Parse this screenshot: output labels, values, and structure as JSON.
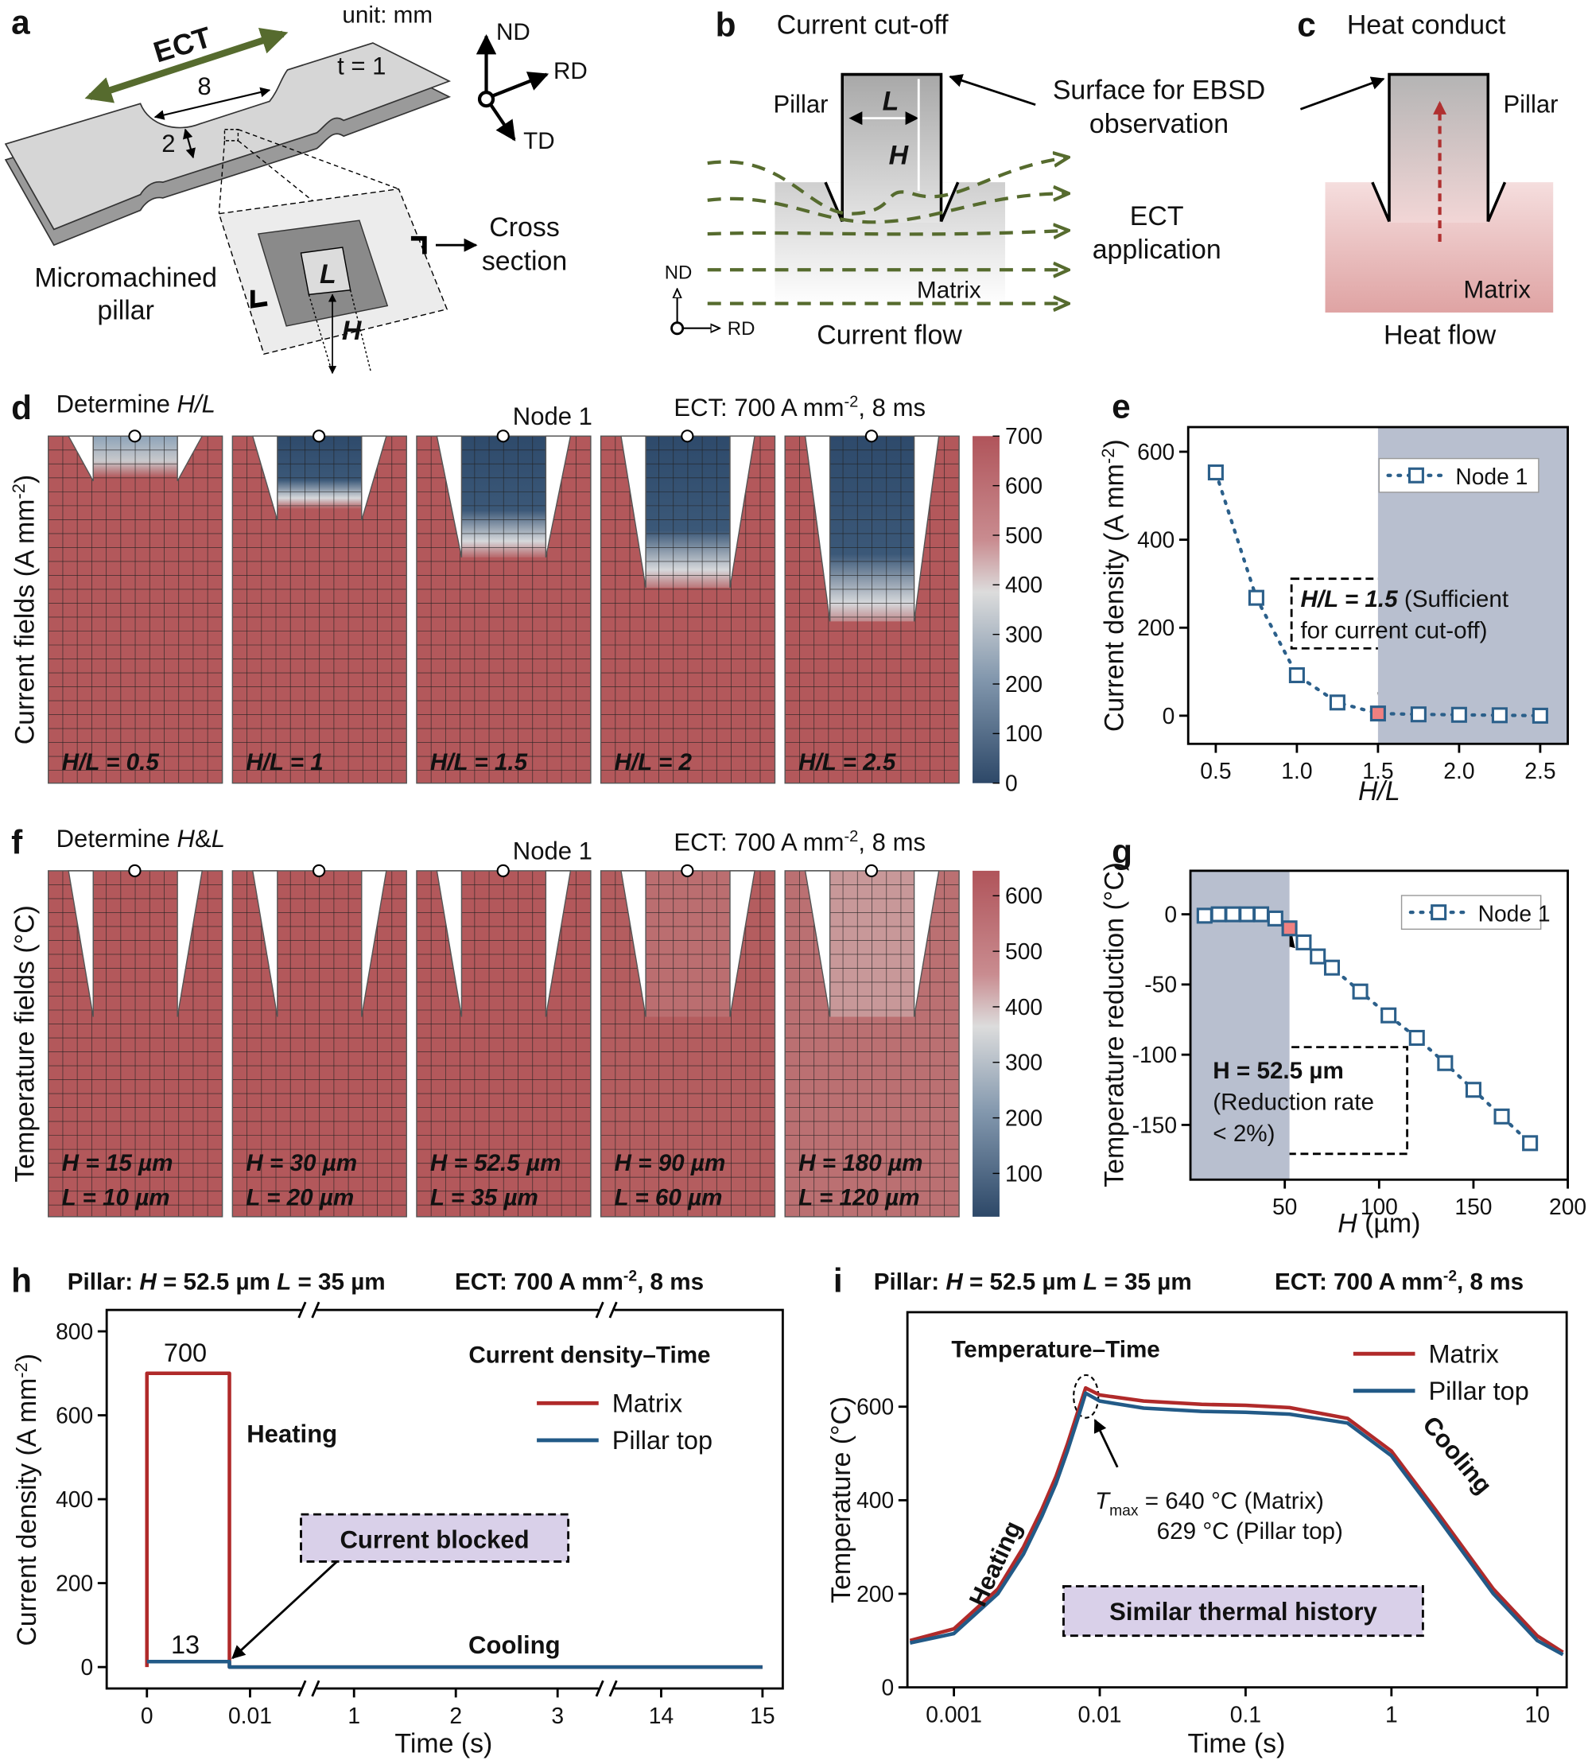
{
  "panels": {
    "a": {
      "label": "a",
      "unit": "unit: mm",
      "ect": "ECT",
      "gauge_length": "8",
      "gauge_width": "2",
      "thickness": "t = 1",
      "axes": [
        "ND",
        "RD",
        "TD"
      ],
      "pillar_L": "L",
      "pillar_H": "H",
      "pillar_name": [
        "Micromachined",
        "pillar"
      ],
      "cross_section": [
        "Cross",
        "section"
      ]
    },
    "b": {
      "label": "b",
      "title": "Current cut-off",
      "pillar": "Pillar",
      "L": "L",
      "H": "H",
      "surface": [
        "Surface for EBSD",
        "observation"
      ],
      "ect": [
        "ECT",
        "application"
      ],
      "matrix": "Matrix",
      "flow": "Current flow",
      "axes": [
        "ND",
        "RD"
      ]
    },
    "c": {
      "label": "c",
      "title": "Heat conduct",
      "pillar": "Pillar",
      "matrix": "Matrix",
      "flow": "Heat flow"
    },
    "d": {
      "label": "d",
      "title": [
        "Determine ",
        "H/L"
      ],
      "node": "Node 1",
      "ect": [
        "ECT: 700 A mm",
        "-2",
        ", 8 ms"
      ],
      "ylabel": [
        "Current fields (A mm",
        "-2",
        ")"
      ],
      "cases": [
        "H/L = 0.5",
        "H/L = 1",
        "H/L = 1.5",
        "H/L = 2",
        "H/L = 2.5"
      ],
      "colorbar": {
        "lim": [
          0,
          700
        ],
        "ticks": [
          0,
          100,
          200,
          300,
          400,
          500,
          600,
          700
        ]
      }
    },
    "f": {
      "label": "f",
      "title": [
        "Determine ",
        "H",
        "&",
        "L"
      ],
      "node": "Node 1",
      "ect": [
        "ECT: 700 A mm",
        "-2",
        ", 8 ms"
      ],
      "ylabel": [
        "Temperature fields (°C)"
      ],
      "cases": [
        [
          "H = 15 µm",
          "L = 10 µm"
        ],
        [
          "H = 30 µm",
          "L = 20 µm"
        ],
        [
          "H = 52.5 µm",
          "L = 35 µm"
        ],
        [
          "H = 90 µm",
          "L = 60 µm"
        ],
        [
          "H = 180 µm",
          "L = 120 µm"
        ]
      ],
      "colorbar": {
        "lim": [
          22,
          645
        ],
        "ticks": [
          100,
          200,
          300,
          400,
          500,
          600
        ]
      }
    }
  },
  "chart_data": [
    {
      "panel": "e",
      "type": "scatter",
      "xlabel": [
        "H/L"
      ],
      "ylabel": [
        "Current density (A mm",
        "-2",
        ")"
      ],
      "x": [
        0.5,
        0.75,
        1,
        1.25,
        1.5,
        1.75,
        2,
        2.25,
        2.5
      ],
      "series": [
        {
          "name": "Node 1",
          "color": "#2b5f8a",
          "values": [
            553,
            268,
            92,
            30,
            5,
            3,
            2,
            1,
            0
          ]
        }
      ],
      "highlight_index": 4,
      "highlight_color": "#f08080",
      "xlim": [
        0.33,
        2.67
      ],
      "ylim": [
        -64,
        656
      ],
      "xticks": [
        0.5,
        {
          "value": 1,
          "label": "1.0"
        },
        1.5,
        {
          "value": 2,
          "label": "2.0"
        },
        2.5
      ],
      "yticks": [
        0,
        200,
        400,
        600
      ],
      "shade": {
        "from": 1.5,
        "color": "#b8bfcf"
      },
      "legend": "upper right",
      "annotation": [
        "H/L = 1.5",
        " (Sufficient",
        "for current cut-off)"
      ]
    },
    {
      "panel": "g",
      "type": "scatter",
      "xlabel": [
        "H",
        " (µm)"
      ],
      "ylabel": [
        "Temperature reduction (°C)"
      ],
      "x": [
        7.5,
        15,
        22.5,
        30,
        37.5,
        45,
        52.5,
        60,
        67.5,
        75,
        90,
        105,
        120,
        135,
        150,
        165,
        180
      ],
      "series": [
        {
          "name": "Node 1",
          "color": "#2b5f8a",
          "values": [
            -1,
            0,
            0,
            0,
            0,
            -3,
            -10,
            -20,
            -30,
            -38,
            -55,
            -72,
            -88,
            -106,
            -125,
            -144,
            -163
          ]
        }
      ],
      "highlight_index": 6,
      "highlight_color": "#f08080",
      "xlim": [
        0,
        200
      ],
      "ylim": [
        -189,
        31
      ],
      "xticks": [
        50,
        100,
        150,
        200
      ],
      "yticks": [
        -150,
        -100,
        -50,
        0
      ],
      "shade": {
        "to": 52.5,
        "color": "#b8bfcf"
      },
      "legend": "upper right",
      "annotation": [
        "H = 52.5 µm",
        "(Reduction rate",
        "< 2%)"
      ]
    },
    {
      "panel": "h",
      "type": "line",
      "title": [
        "Pillar: ",
        "H",
        " = 52.5 µm  ",
        "L",
        " = 35 µm"
      ],
      "subtitle": [
        "ECT: 700 A mm",
        "-2",
        ", 8 ms"
      ],
      "xlabel": [
        "Time (s)"
      ],
      "ylabel": [
        "Current density (A mm",
        "-2",
        ")"
      ],
      "x_segments": [
        [
          -0.0039,
          0.0157
        ],
        [
          0.556,
          3.48
        ],
        [
          13.46,
          15.2
        ]
      ],
      "xticks": [
        0,
        0.01,
        1,
        2,
        3,
        14,
        15
      ],
      "ylim": [
        -51,
        851
      ],
      "yticks": [
        0,
        200,
        400,
        600,
        800
      ],
      "series": [
        {
          "name": "Matrix",
          "color": "#b02a2a",
          "x": [
            0,
            0,
            0.008,
            0.008,
            15
          ],
          "values": [
            0,
            700,
            700,
            0,
            0
          ]
        },
        {
          "name": "Pillar top",
          "color": "#225a87",
          "x": [
            0,
            0.008,
            0.008,
            15
          ],
          "values": [
            13,
            13,
            0,
            0
          ]
        }
      ],
      "legend_title": "Current density–Time",
      "annotations": {
        "heating": "Heating",
        "cooling": "Cooling",
        "blocked": "Current blocked"
      }
    },
    {
      "panel": "i",
      "type": "line",
      "title": [
        "Pillar: ",
        "H",
        " = 52.5 µm  ",
        "L",
        " = 35 µm"
      ],
      "subtitle": [
        "ECT: 700 A mm",
        "-2",
        ", 8 ms"
      ],
      "xlabel": [
        "Time (s)"
      ],
      "ylabel": [
        "Temperature (°C)"
      ],
      "xscale": "log",
      "x": [
        0.0005,
        0.001,
        0.002,
        0.003,
        0.004,
        0.005,
        0.006,
        0.007,
        0.008,
        0.01,
        0.02,
        0.05,
        0.1,
        0.2,
        0.5,
        1,
        2,
        5,
        10,
        15
      ],
      "xlim": [
        0.00048,
        15.9
      ],
      "ylim": [
        0,
        802
      ],
      "xticks": [
        0.001,
        0.01,
        0.1,
        1,
        10
      ],
      "yticks": [
        0,
        200,
        400,
        600
      ],
      "series": [
        {
          "name": "Matrix",
          "color": "#b02a2a",
          "values": [
            100,
            125,
            210,
            300,
            380,
            450,
            520,
            585,
            640,
            625,
            612,
            605,
            603,
            598,
            575,
            505,
            380,
            210,
            110,
            75
          ]
        },
        {
          "name": "Pillar top",
          "color": "#225a87",
          "values": [
            95,
            115,
            200,
            285,
            365,
            435,
            505,
            570,
            629,
            612,
            597,
            590,
            588,
            584,
            565,
            495,
            370,
            200,
            100,
            70
          ]
        }
      ],
      "legend_title": "Temperature–Time",
      "annotations": {
        "tmax": [
          "T",
          "max",
          " = 640 °C (Matrix)"
        ],
        "tmax_pillar": "629 °C (Pillar top)",
        "heating": "Heating",
        "cooling": "Cooling",
        "note": "Similar thermal history"
      }
    }
  ]
}
